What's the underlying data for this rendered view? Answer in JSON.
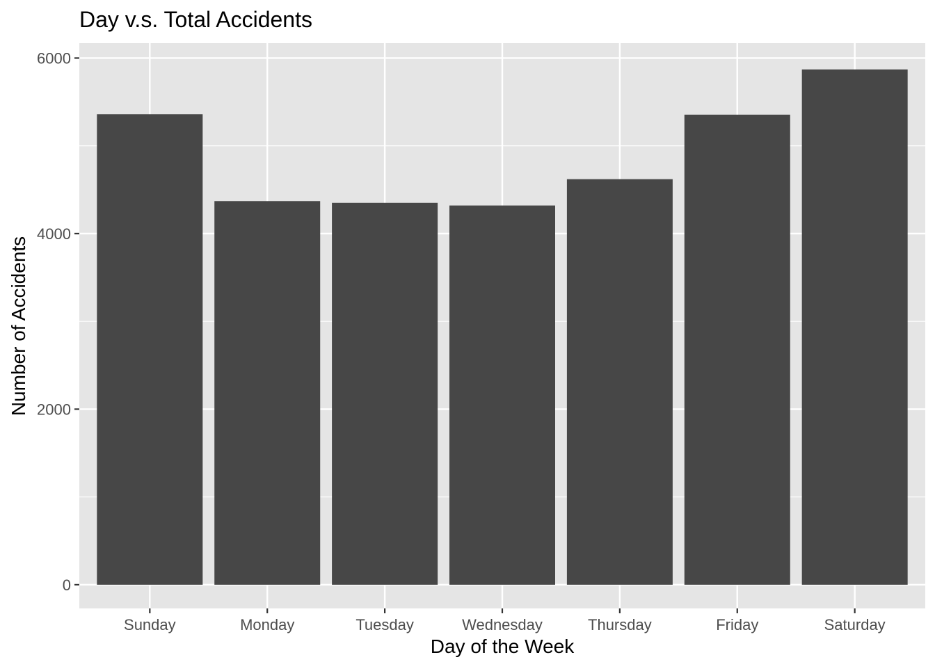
{
  "chart_data": {
    "type": "bar",
    "title": "Day v.s. Total Accidents",
    "xlabel": "Day of the Week",
    "ylabel": "Number of Accidents",
    "categories": [
      "Sunday",
      "Monday",
      "Tuesday",
      "Wednesday",
      "Thursday",
      "Friday",
      "Saturday"
    ],
    "values": [
      5360,
      4370,
      4350,
      4320,
      4620,
      5355,
      5870
    ],
    "ylim": [
      -270,
      6170
    ],
    "yticks": [
      0,
      2000,
      4000,
      6000
    ],
    "ytick_labels": [
      "0",
      "2000",
      "4000",
      "6000"
    ],
    "grid": true,
    "legend": "none",
    "colors": {
      "bar": "#474747",
      "panel_background": "#e5e5e5",
      "grid_line": "#ffffff",
      "tick_mark": "#333333",
      "tick_label": "#4d4d4d"
    }
  }
}
